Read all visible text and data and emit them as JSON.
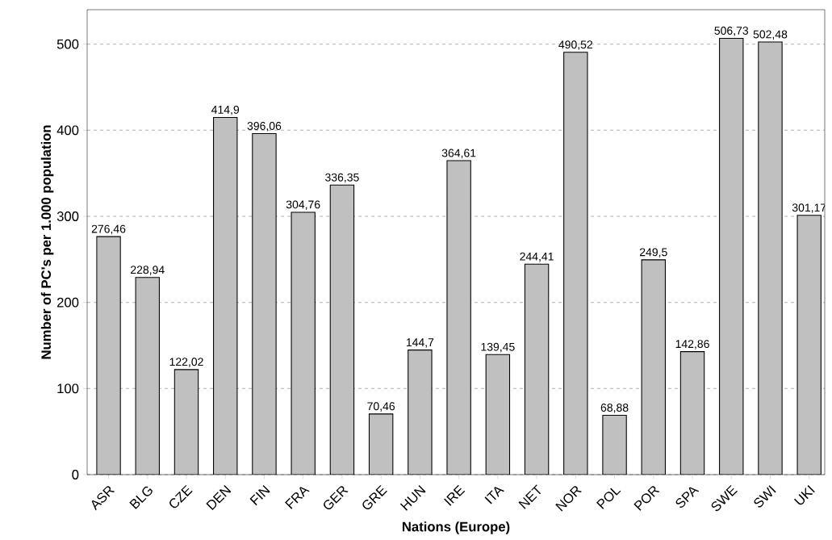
{
  "chart_data": {
    "type": "bar",
    "xlabel": "Nations (Europe)",
    "ylabel": "Number of PC's per 1.000 population",
    "categories": [
      "ASR",
      "BLG",
      "CZE",
      "DEN",
      "FIN",
      "FRA",
      "GER",
      "GRE",
      "HUN",
      "IRE",
      "ITA",
      "NET",
      "NOR",
      "POL",
      "POR",
      "SPA",
      "SWE",
      "SWI",
      "UKI"
    ],
    "values": [
      276.46,
      228.94,
      122.02,
      414.9,
      396.06,
      304.76,
      336.35,
      70.46,
      144.7,
      364.61,
      139.45,
      244.41,
      490.52,
      68.88,
      249.5,
      142.86,
      506.73,
      502.48,
      301.17
    ],
    "value_labels": [
      "276,46",
      "228,94",
      "122,02",
      "414,9",
      "396,06",
      "304,76",
      "336,35",
      "70,46",
      "144,7",
      "364,61",
      "139,45",
      "244,41",
      "490,52",
      "68,88",
      "249,5",
      "142,86",
      "506,73",
      "502,48",
      "301,17"
    ],
    "color": "#c0c0c0",
    "ylim": [
      0,
      540
    ],
    "yticks": [
      0,
      100,
      200,
      300,
      400,
      500
    ],
    "grid": "y"
  }
}
